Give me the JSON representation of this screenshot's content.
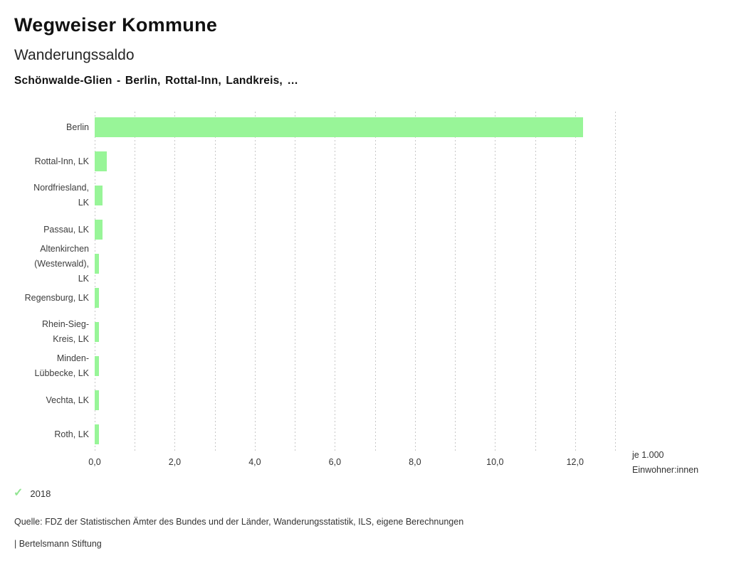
{
  "header": {
    "app_title": "Wegweiser Kommune",
    "chart_title": "Wanderungssaldo",
    "chart_subtitle": "Schönwalde-Glien - Berlin, Rottal-Inn, Landkreis, …"
  },
  "chart_data": {
    "type": "bar",
    "orientation": "horizontal",
    "title": "Wanderungssaldo",
    "subtitle": "Schönwalde-Glien - Berlin, Rottal-Inn, Landkreis, …",
    "categories": [
      "Berlin",
      "Rottal-Inn, LK",
      "Nordfriesland, LK",
      "Passau, LK",
      "Altenkirchen (Westerwald), LK",
      "Regensburg, LK",
      "Rhein-Sieg-Kreis, LK",
      "Minden-Lübbecke, LK",
      "Vechta, LK",
      "Roth, LK"
    ],
    "category_lines": [
      [
        "Berlin"
      ],
      [
        "Rottal-Inn, LK"
      ],
      [
        "Nordfriesland,",
        "LK"
      ],
      [
        "Passau, LK"
      ],
      [
        "Altenkirchen",
        "(Westerwald),",
        "LK"
      ],
      [
        "Regensburg, LK"
      ],
      [
        "Rhein-Sieg-",
        "Kreis, LK"
      ],
      [
        "Minden-",
        "Lübbecke, LK"
      ],
      [
        "Vechta, LK"
      ],
      [
        "Roth, LK"
      ]
    ],
    "series": [
      {
        "name": "2018",
        "values": [
          12.2,
          0.3,
          0.2,
          0.2,
          0.1,
          0.1,
          0.1,
          0.1,
          0.1,
          0.1
        ]
      }
    ],
    "xlabel": "je 1.000 Einwohner:innen",
    "unit_label_lines": [
      "je 1.000",
      "Einwohner:innen"
    ],
    "xlim": [
      0,
      13
    ],
    "x_tick_values": [
      0,
      2,
      4,
      6,
      8,
      10,
      12
    ],
    "x_tick_labels": [
      "0,0",
      "2,0",
      "4,0",
      "6,0",
      "8,0",
      "10,0",
      "12,0"
    ],
    "gridline_interval": 1,
    "grid": true,
    "bar_color": "#98f598",
    "legend_position": "bottom-left"
  },
  "legend": {
    "icon": "check-icon",
    "check_glyph": "✓",
    "check_color": "#92e592",
    "year": "2018"
  },
  "footer": {
    "source": "Quelle: FDZ der Statistischen Ämter des Bundes und der Länder, Wanderungsstatistik, ILS, eigene Berechnungen",
    "branding": "| Bertelsmann Stiftung"
  }
}
